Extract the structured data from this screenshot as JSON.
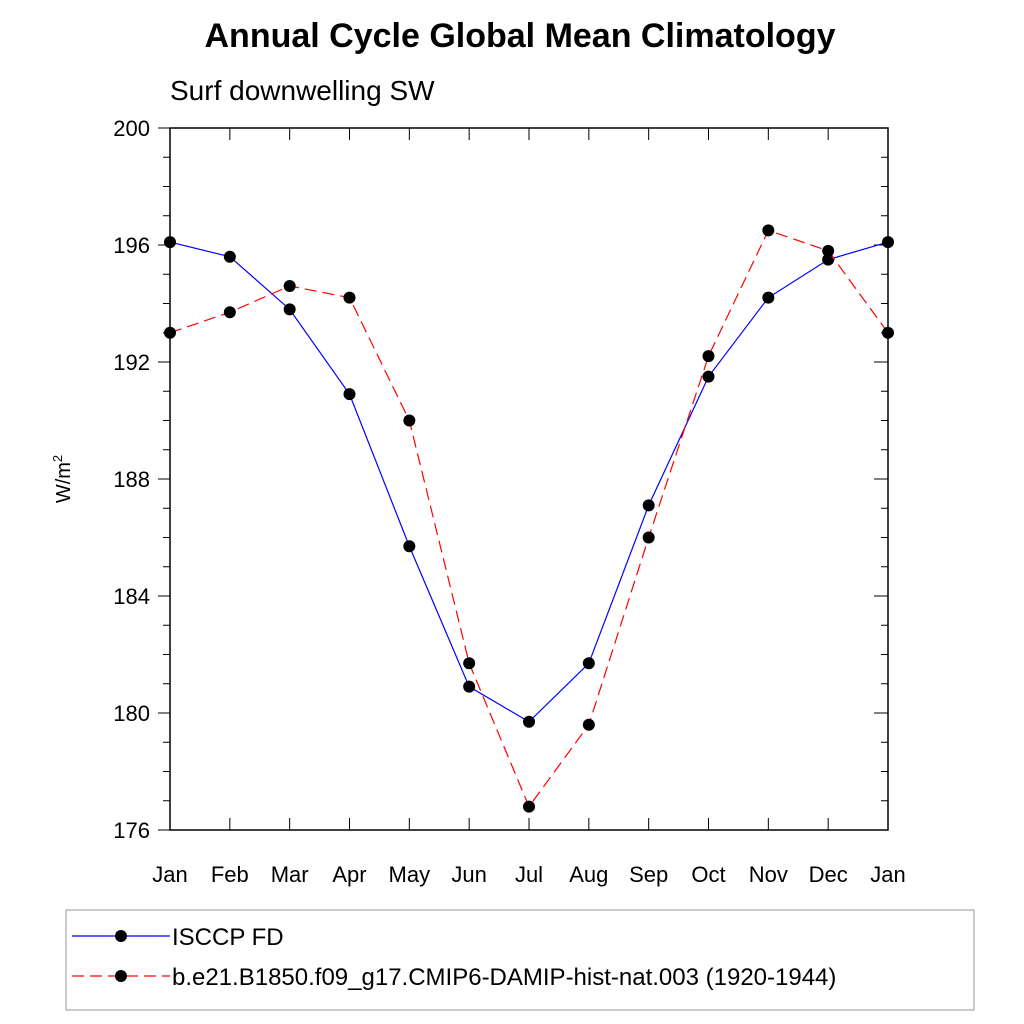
{
  "chart_data": {
    "type": "line",
    "title": "Annual Cycle Global Mean Climatology",
    "subtitle": "Surf downwelling SW",
    "ylabel_base": "W/m",
    "ylabel_sup": "2",
    "xlabel": "",
    "categories": [
      "Jan",
      "Feb",
      "Mar",
      "Apr",
      "May",
      "Jun",
      "Jul",
      "Aug",
      "Sep",
      "Oct",
      "Nov",
      "Dec",
      "Jan"
    ],
    "yticks": [
      "176",
      "180",
      "184",
      "188",
      "192",
      "196",
      "200"
    ],
    "ylim": [
      176,
      200
    ],
    "grid": false,
    "legend_position": "bottom",
    "series": [
      {
        "name": "ISCCP FD",
        "color": "#0000ff",
        "dash": "solid",
        "values": [
          196.1,
          195.6,
          193.8,
          190.9,
          185.7,
          180.9,
          179.7,
          181.7,
          187.1,
          191.5,
          194.2,
          195.5,
          196.1
        ]
      },
      {
        "name": "b.e21.B1850.f09_g17.CMIP6-DAMIP-hist-nat.003 (1920-1944)",
        "color": "#ff0000",
        "dash": "dashed",
        "values": [
          193.0,
          193.7,
          194.6,
          194.2,
          190.0,
          181.7,
          176.8,
          179.6,
          186.0,
          192.2,
          196.5,
          195.8,
          193.0
        ]
      }
    ]
  }
}
